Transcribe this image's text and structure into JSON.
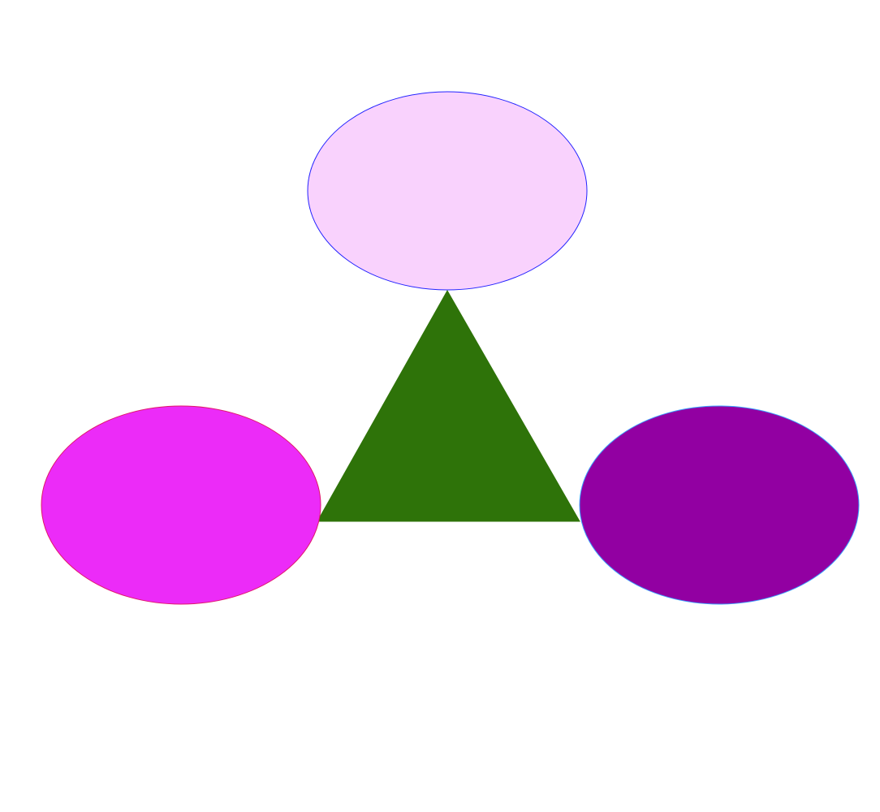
{
  "diagram": {
    "background": "#ffffff",
    "shapes": [
      {
        "id": "top-ellipse",
        "kind": "ellipse",
        "fill": "#f9d2fd",
        "stroke": "#2323ff"
      },
      {
        "id": "center-triangle",
        "kind": "triangle",
        "fill": "#2e7309",
        "stroke": "#2e7309"
      },
      {
        "id": "left-ellipse",
        "kind": "ellipse",
        "fill": "#ec2bf8",
        "stroke": "#e0186b"
      },
      {
        "id": "right-ellipse",
        "kind": "ellipse",
        "fill": "#9200a2",
        "stroke": "#3aa0ff"
      }
    ]
  }
}
